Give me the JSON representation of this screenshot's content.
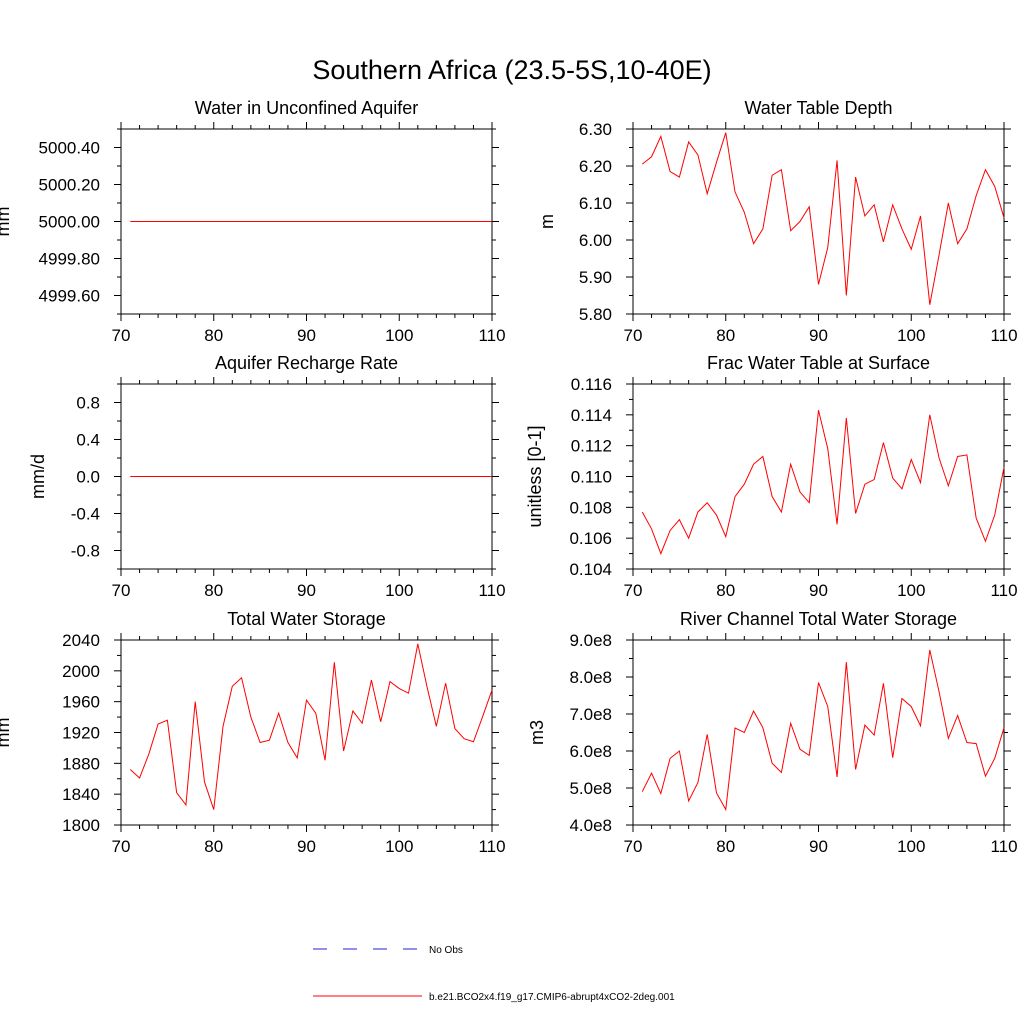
{
  "page_title": "Southern Africa (23.5-5S,10-40E)",
  "legend": [
    {
      "label": "No Obs",
      "color": "#2222cc",
      "style": "dashed"
    },
    {
      "label": "b.e21.BCO2x4.f19_g17.CMIP6-abrupt4xCO2-2deg.001",
      "color": "#ff0000",
      "style": "solid"
    }
  ],
  "chart_data": [
    {
      "type": "line",
      "title": "Water in Unconfined Aquifer",
      "xlabel": "",
      "ylabel": "mm",
      "xlim": [
        70,
        110
      ],
      "ylim": [
        4999.5,
        5000.5
      ],
      "xticks": [
        70,
        80,
        90,
        100,
        110
      ],
      "xtick_labels": [
        "70",
        "80",
        "90",
        "100",
        "110"
      ],
      "yticks": [
        4999.6,
        4999.8,
        5000.0,
        5000.2,
        5000.4
      ],
      "ytick_labels": [
        "4999.60",
        "4999.80",
        "5000.00",
        "5000.20",
        "5000.40"
      ],
      "series": [
        {
          "name": "b.e21.BCO2x4.f19_g17.CMIP6-abrupt4xCO2-2deg.001",
          "color": "#ff0000",
          "x": [
            71,
            110
          ],
          "y": [
            5000.0,
            5000.0
          ]
        }
      ]
    },
    {
      "type": "line",
      "title": "Water Table Depth",
      "xlabel": "",
      "ylabel": "m",
      "xlim": [
        70,
        110
      ],
      "ylim": [
        5.8,
        6.3
      ],
      "xticks": [
        70,
        80,
        90,
        100,
        110
      ],
      "xtick_labels": [
        "70",
        "80",
        "90",
        "100",
        "110"
      ],
      "yticks": [
        5.8,
        5.9,
        6.0,
        6.1,
        6.2,
        6.3
      ],
      "ytick_labels": [
        "5.80",
        "5.90",
        "6.00",
        "6.10",
        "6.20",
        "6.30"
      ],
      "series": [
        {
          "name": "b.e21.BCO2x4.f19_g17.CMIP6-abrupt4xCO2-2deg.001",
          "color": "#ff0000",
          "x": [
            71,
            72,
            73,
            74,
            75,
            76,
            77,
            78,
            79,
            80,
            81,
            82,
            83,
            84,
            85,
            86,
            87,
            88,
            89,
            90,
            91,
            92,
            93,
            94,
            95,
            96,
            97,
            98,
            99,
            100,
            101,
            102,
            103,
            104,
            105,
            106,
            107,
            108,
            109,
            110
          ],
          "y": [
            6.205,
            6.225,
            6.28,
            6.185,
            6.17,
            6.265,
            6.23,
            6.125,
            6.21,
            6.29,
            6.13,
            6.075,
            5.99,
            6.03,
            6.175,
            6.19,
            6.025,
            6.05,
            6.09,
            5.88,
            5.98,
            6.215,
            5.85,
            6.17,
            6.065,
            6.095,
            5.995,
            6.095,
            6.03,
            5.975,
            6.065,
            5.825,
            5.96,
            6.1,
            5.99,
            6.03,
            6.12,
            6.19,
            6.145,
            6.06
          ]
        }
      ]
    },
    {
      "type": "line",
      "title": "Aquifer Recharge Rate",
      "xlabel": "",
      "ylabel": "mm/d",
      "xlim": [
        70,
        110
      ],
      "ylim": [
        -1.0,
        1.0
      ],
      "xticks": [
        70,
        80,
        90,
        100,
        110
      ],
      "xtick_labels": [
        "70",
        "80",
        "90",
        "100",
        "110"
      ],
      "yticks": [
        -0.8,
        -0.4,
        0.0,
        0.4,
        0.8
      ],
      "ytick_labels": [
        "-0.8",
        "-0.4",
        "0.0",
        "0.4",
        "0.8"
      ],
      "series": [
        {
          "name": "b.e21.BCO2x4.f19_g17.CMIP6-abrupt4xCO2-2deg.001",
          "color": "#ff0000",
          "x": [
            71,
            110
          ],
          "y": [
            0.0,
            0.0
          ]
        }
      ]
    },
    {
      "type": "line",
      "title": "Frac Water Table at Surface",
      "xlabel": "",
      "ylabel": "unitless [0-1]",
      "xlim": [
        70,
        110
      ],
      "ylim": [
        0.104,
        0.116
      ],
      "xticks": [
        70,
        80,
        90,
        100,
        110
      ],
      "xtick_labels": [
        "70",
        "80",
        "90",
        "100",
        "110"
      ],
      "yticks": [
        0.104,
        0.106,
        0.108,
        0.11,
        0.112,
        0.114,
        0.116
      ],
      "ytick_labels": [
        "0.104",
        "0.106",
        "0.108",
        "0.110",
        "0.112",
        "0.114",
        "0.116"
      ],
      "series": [
        {
          "name": "b.e21.BCO2x4.f19_g17.CMIP6-abrupt4xCO2-2deg.001",
          "color": "#ff0000",
          "x": [
            71,
            72,
            73,
            74,
            75,
            76,
            77,
            78,
            79,
            80,
            81,
            82,
            83,
            84,
            85,
            86,
            87,
            88,
            89,
            90,
            91,
            92,
            93,
            94,
            95,
            96,
            97,
            98,
            99,
            100,
            101,
            102,
            103,
            104,
            105,
            106,
            107,
            108,
            109,
            110
          ],
          "y": [
            0.1077,
            0.1066,
            0.105,
            0.1065,
            0.1072,
            0.106,
            0.1077,
            0.1083,
            0.1075,
            0.1061,
            0.1087,
            0.1095,
            0.1108,
            0.1113,
            0.1087,
            0.1077,
            0.1108,
            0.109,
            0.1083,
            0.1143,
            0.1118,
            0.1069,
            0.1138,
            0.1076,
            0.1095,
            0.1098,
            0.1122,
            0.1099,
            0.1092,
            0.1111,
            0.1096,
            0.114,
            0.1112,
            0.1094,
            0.1113,
            0.1114,
            0.1073,
            0.1058,
            0.1075,
            0.1106
          ]
        }
      ]
    },
    {
      "type": "line",
      "title": "Total Water Storage",
      "xlabel": "",
      "ylabel": "mm",
      "xlim": [
        70,
        110
      ],
      "ylim": [
        1800,
        2040
      ],
      "xticks": [
        70,
        80,
        90,
        100,
        110
      ],
      "xtick_labels": [
        "70",
        "80",
        "90",
        "100",
        "110"
      ],
      "yticks": [
        1800,
        1840,
        1880,
        1920,
        1960,
        2000,
        2040
      ],
      "ytick_labels": [
        "1800",
        "1840",
        "1880",
        "1920",
        "1960",
        "2000",
        "2040"
      ],
      "series": [
        {
          "name": "b.e21.BCO2x4.f19_g17.CMIP6-abrupt4xCO2-2deg.001",
          "color": "#ff0000",
          "x": [
            71,
            72,
            73,
            74,
            75,
            76,
            77,
            78,
            79,
            80,
            81,
            82,
            83,
            84,
            85,
            86,
            87,
            88,
            89,
            90,
            91,
            92,
            93,
            94,
            95,
            96,
            97,
            98,
            99,
            100,
            101,
            102,
            103,
            104,
            105,
            106,
            107,
            108,
            109,
            110
          ],
          "y": [
            1872,
            1861,
            1892,
            1931,
            1936,
            1842,
            1826,
            1960,
            1856,
            1820,
            1928,
            1980,
            1991,
            1940,
            1907,
            1910,
            1945,
            1907,
            1887,
            1962,
            1945,
            1884,
            2011,
            1896,
            1948,
            1932,
            1988,
            1934,
            1986,
            1977,
            1971,
            2035,
            1979,
            1928,
            1984,
            1925,
            1912,
            1908,
            1941,
            1975
          ]
        }
      ]
    },
    {
      "type": "line",
      "title": "River Channel Total Water Storage",
      "xlabel": "",
      "ylabel": "m3",
      "xlim": [
        70,
        110
      ],
      "ylim": [
        400000000,
        900000000
      ],
      "xticks": [
        70,
        80,
        90,
        100,
        110
      ],
      "xtick_labels": [
        "70",
        "80",
        "90",
        "100",
        "110"
      ],
      "yticks": [
        400000000,
        500000000,
        600000000,
        700000000,
        800000000,
        900000000
      ],
      "ytick_labels": [
        "4.0e8",
        "5.0e8",
        "6.0e8",
        "7.0e8",
        "8.0e8",
        "9.0e8"
      ],
      "series": [
        {
          "name": "b.e21.BCO2x4.f19_g17.CMIP6-abrupt4xCO2-2deg.001",
          "color": "#ff0000",
          "x": [
            71,
            72,
            73,
            74,
            75,
            76,
            77,
            78,
            79,
            80,
            81,
            82,
            83,
            84,
            85,
            86,
            87,
            88,
            89,
            90,
            91,
            92,
            93,
            94,
            95,
            96,
            97,
            98,
            99,
            100,
            101,
            102,
            103,
            104,
            105,
            106,
            107,
            108,
            109,
            110
          ],
          "y": [
            490000000,
            540000000,
            485000000,
            580000000,
            600000000,
            465000000,
            515000000,
            645000000,
            487000000,
            442000000,
            662000000,
            650000000,
            708000000,
            663000000,
            567000000,
            542000000,
            675000000,
            605000000,
            588000000,
            785000000,
            720000000,
            530000000,
            840000000,
            550000000,
            670000000,
            643000000,
            783000000,
            582000000,
            742000000,
            720000000,
            668000000,
            873000000,
            760000000,
            634000000,
            696000000,
            623000000,
            620000000,
            532000000,
            580000000,
            663000000
          ]
        }
      ]
    }
  ]
}
